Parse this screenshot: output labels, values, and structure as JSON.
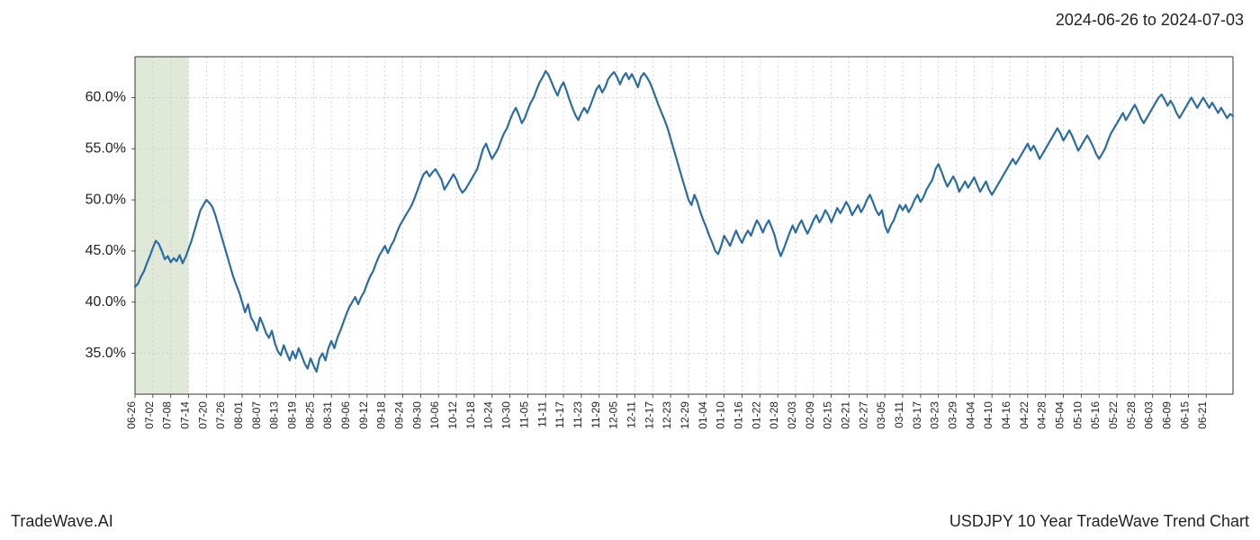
{
  "header": {
    "date_range": "2024-06-26 to 2024-07-03"
  },
  "footer": {
    "brand": "TradeWave.AI",
    "title": "USDJPY 10 Year TradeWave Trend Chart"
  },
  "chart": {
    "type": "line",
    "background_color": "#ffffff",
    "plot_border_color": "#333333",
    "grid_color": "#cccccc",
    "grid_dash": "2,3",
    "line_color": "#2b6ca3",
    "line_width": 2.2,
    "highlight_band": {
      "fill": "#e0e8d8",
      "x_start_index": 0,
      "x_end_index": 3
    },
    "yaxis": {
      "min": 31,
      "max": 64,
      "ticks": [
        35,
        40,
        45,
        50,
        55,
        60
      ],
      "tick_format_suffix": ".0%",
      "label_fontsize": 16
    },
    "xaxis": {
      "labels": [
        "06-26",
        "07-02",
        "07-08",
        "07-14",
        "07-20",
        "07-26",
        "08-01",
        "08-07",
        "08-13",
        "08-19",
        "08-25",
        "08-31",
        "09-06",
        "09-12",
        "09-18",
        "09-24",
        "09-30",
        "10-06",
        "10-12",
        "10-18",
        "10-24",
        "10-30",
        "11-05",
        "11-11",
        "11-17",
        "11-23",
        "11-29",
        "12-05",
        "12-11",
        "12-17",
        "12-23",
        "12-29",
        "01-04",
        "01-10",
        "01-16",
        "01-22",
        "01-28",
        "02-03",
        "02-09",
        "02-15",
        "02-21",
        "02-27",
        "03-05",
        "03-11",
        "03-17",
        "03-23",
        "03-29",
        "04-04",
        "04-10",
        "04-16",
        "04-22",
        "04-28",
        "05-04",
        "05-10",
        "05-16",
        "05-22",
        "05-28",
        "06-03",
        "06-09",
        "06-15",
        "06-21"
      ],
      "label_fontsize": 12,
      "rotation_deg": -90
    },
    "series": {
      "points_per_label": 6,
      "values": [
        41.5,
        41.8,
        42.5,
        43.0,
        43.8,
        44.5,
        45.3,
        46.0,
        45.7,
        45.0,
        44.2,
        44.5,
        43.9,
        44.3,
        44.0,
        44.6,
        43.8,
        44.4,
        45.2,
        46.0,
        47.0,
        48.0,
        49.0,
        49.5,
        50.0,
        49.7,
        49.3,
        48.5,
        47.5,
        46.5,
        45.5,
        44.5,
        43.5,
        42.5,
        41.7,
        41.0,
        40.0,
        39.0,
        39.8,
        38.5,
        38.0,
        37.2,
        38.5,
        37.8,
        37.0,
        36.5,
        37.2,
        36.0,
        35.2,
        34.8,
        35.8,
        35.0,
        34.3,
        35.2,
        34.5,
        35.5,
        34.8,
        34.0,
        33.5,
        34.5,
        33.8,
        33.2,
        34.5,
        35.0,
        34.3,
        35.5,
        36.2,
        35.5,
        36.5,
        37.2,
        38.0,
        38.8,
        39.5,
        40.0,
        40.5,
        39.8,
        40.5,
        41.0,
        41.8,
        42.5,
        43.0,
        43.8,
        44.5,
        45.0,
        45.5,
        44.8,
        45.5,
        46.0,
        46.8,
        47.5,
        48.0,
        48.5,
        49.0,
        49.5,
        50.2,
        51.0,
        51.8,
        52.5,
        52.8,
        52.3,
        52.7,
        53.0,
        52.5,
        52.0,
        51.0,
        51.5,
        52.0,
        52.5,
        52.0,
        51.2,
        50.7,
        51.0,
        51.5,
        52.0,
        52.5,
        53.0,
        54.0,
        55.0,
        55.5,
        54.7,
        54.0,
        54.5,
        55.0,
        55.8,
        56.5,
        57.0,
        57.8,
        58.5,
        59.0,
        58.3,
        57.5,
        58.0,
        58.8,
        59.5,
        60.0,
        60.8,
        61.5,
        62.0,
        62.6,
        62.2,
        61.5,
        60.8,
        60.2,
        61.0,
        61.5,
        60.7,
        59.8,
        59.0,
        58.3,
        57.8,
        58.5,
        59.0,
        58.5,
        59.2,
        60.0,
        60.8,
        61.2,
        60.5,
        61.0,
        61.8,
        62.2,
        62.5,
        62.0,
        61.3,
        62.0,
        62.4,
        61.8,
        62.3,
        61.7,
        61.0,
        62.0,
        62.4,
        62.0,
        61.5,
        60.8,
        60.0,
        59.2,
        58.5,
        57.8,
        57.0,
        56.0,
        55.0,
        54.0,
        53.0,
        52.0,
        51.0,
        50.0,
        49.5,
        50.5,
        49.8,
        48.8,
        48.0,
        47.3,
        46.5,
        45.8,
        45.0,
        44.7,
        45.5,
        46.5,
        46.0,
        45.5,
        46.3,
        47.0,
        46.3,
        45.8,
        46.5,
        47.0,
        46.5,
        47.3,
        48.0,
        47.5,
        46.8,
        47.5,
        48.0,
        47.3,
        46.5,
        45.3,
        44.5,
        45.2,
        46.0,
        46.8,
        47.5,
        46.8,
        47.5,
        48.0,
        47.3,
        46.7,
        47.3,
        48.0,
        48.5,
        47.8,
        48.3,
        49.0,
        48.5,
        47.8,
        48.5,
        49.2,
        48.7,
        49.2,
        49.8,
        49.3,
        48.5,
        49.0,
        49.5,
        48.8,
        49.3,
        50.0,
        50.5,
        49.8,
        49.0,
        48.5,
        49.0,
        47.5,
        46.8,
        47.5,
        48.0,
        48.8,
        49.5,
        49.0,
        49.5,
        48.8,
        49.3,
        50.0,
        50.5,
        49.8,
        50.3,
        51.0,
        51.5,
        52.0,
        53.0,
        53.5,
        52.8,
        52.0,
        51.3,
        51.8,
        52.3,
        51.7,
        50.8,
        51.3,
        51.8,
        51.2,
        51.7,
        52.2,
        51.5,
        50.8,
        51.3,
        51.8,
        51.0,
        50.5,
        51.0,
        51.5,
        52.0,
        52.5,
        53.0,
        53.5,
        54.0,
        53.5,
        54.0,
        54.5,
        55.0,
        55.5,
        54.8,
        55.3,
        54.7,
        54.0,
        54.5,
        55.0,
        55.5,
        56.0,
        56.5,
        57.0,
        56.5,
        55.8,
        56.3,
        56.8,
        56.2,
        55.5,
        54.8,
        55.3,
        55.8,
        56.3,
        55.8,
        55.2,
        54.5,
        54.0,
        54.5,
        55.0,
        55.8,
        56.5,
        57.0,
        57.5,
        58.0,
        58.5,
        57.8,
        58.3,
        58.8,
        59.3,
        58.7,
        58.0,
        57.5,
        58.0,
        58.5,
        59.0,
        59.5,
        60.0,
        60.3,
        59.8,
        59.2,
        59.7,
        59.2,
        58.5,
        58.0,
        58.5,
        59.0,
        59.5,
        60.0,
        59.5,
        59.0,
        59.5,
        60.0,
        59.5,
        59.0,
        59.5,
        59.0,
        58.5,
        59.0,
        58.5,
        58.0,
        58.4,
        58.2
      ]
    }
  }
}
